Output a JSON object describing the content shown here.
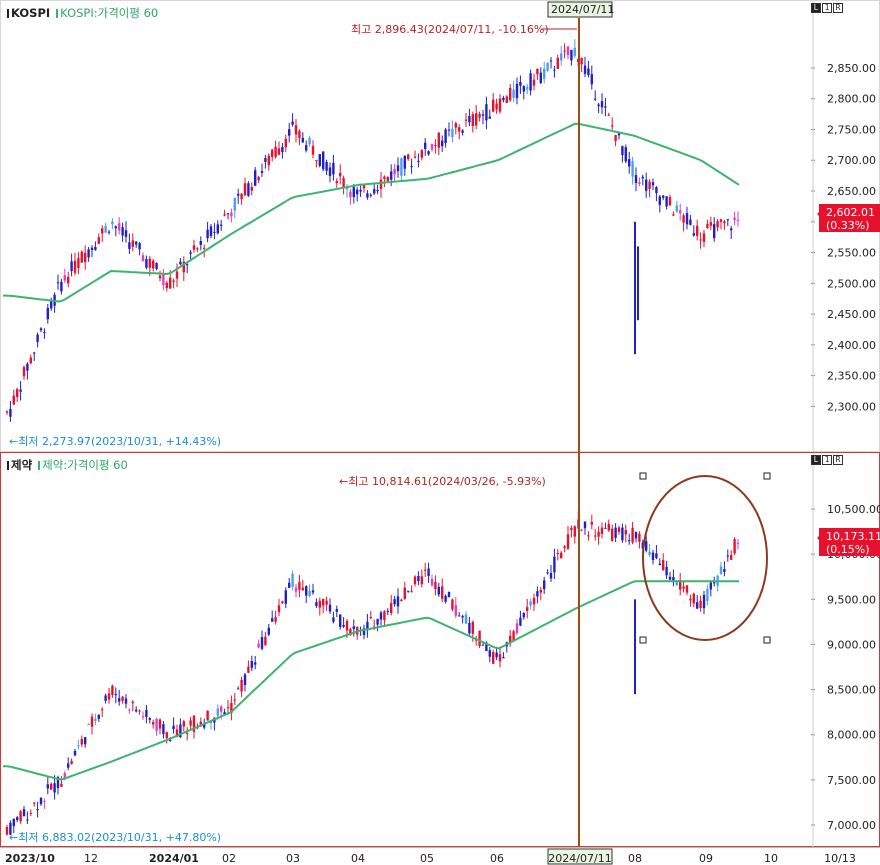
{
  "pane1": {
    "symbol": "KOSPI",
    "ma_label": "KOSPI:가격이평 60",
    "high_annotation": "최고 2,896.43(2024/07/11, -10.16%)",
    "low_annotation": "←최저 2,273.97(2023/10/31, +14.43%)",
    "price_tag": "2,602.01",
    "change_tag": "(0.33%)",
    "y_labels": [
      "2,850.00",
      "2,800.00",
      "2,750.00",
      "2,700.00",
      "2,650.00",
      "2,600.00",
      "2,550.00",
      "2,500.00",
      "2,450.00",
      "2,400.00",
      "2,350.00",
      "2,300.00"
    ],
    "y_values": [
      2850,
      2800,
      2750,
      2700,
      2650,
      2600,
      2550,
      2500,
      2450,
      2400,
      2350,
      2300
    ],
    "ctrl": [
      "L",
      "1",
      "R"
    ]
  },
  "pane2": {
    "symbol": "제약",
    "ma_label": "제약:가격이평 60",
    "high_annotation": "←최고 10,814.61(2024/03/26, -5.93%)",
    "low_annotation": "←최저 6,883.02(2023/10/31, +47.80%)",
    "price_tag": "10,173.11",
    "change_tag": "(0.15%)",
    "y_labels": [
      "10,500.00",
      "10,000.00",
      "9,500.00",
      "9,000.00",
      "8,500.00",
      "8,000.00",
      "7,500.00",
      "7,000.00"
    ],
    "y_values": [
      10500,
      10000,
      9500,
      9000,
      8500,
      8000,
      7500,
      7000
    ],
    "ctrl": [
      "L",
      "1",
      "R"
    ]
  },
  "crosshair": {
    "date_label": "2024/07/11"
  },
  "x_axis": {
    "labels": [
      "2023/10",
      "12",
      "2024/01",
      "02",
      "03",
      "04",
      "05",
      "06",
      "2024/07/11",
      "08",
      "09",
      "10",
      "10/13"
    ]
  },
  "colors": {
    "up": "#e8112d",
    "down": "#2020c8",
    "ma": "#3db46d",
    "crosshair": "#a34a0f",
    "circle": "#8b3a1f",
    "pink": "#e040c0",
    "lightblue": "#4aa0f0"
  },
  "chart_data": [
    {
      "type": "line",
      "title": "KOSPI",
      "series": [
        {
          "name": "KOSPI",
          "x": [
            "2023/10",
            "2023/11",
            "2023/12",
            "2024/01",
            "2024/02",
            "2024/03",
            "2024/04",
            "2024/05",
            "2024/06",
            "2024/07",
            "2024/08",
            "2024/09",
            "2024/10"
          ],
          "values": [
            2290,
            2500,
            2600,
            2500,
            2620,
            2750,
            2640,
            2720,
            2790,
            2880,
            2680,
            2580,
            2602
          ]
        },
        {
          "name": "KOSPI:가격이평 60",
          "x": [
            "2023/10",
            "2023/11",
            "2023/12",
            "2024/01",
            "2024/02",
            "2024/03",
            "2024/04",
            "2024/05",
            "2024/06",
            "2024/07",
            "2024/08",
            "2024/09",
            "2024/10"
          ],
          "values": [
            2480,
            2470,
            2520,
            2515,
            2580,
            2640,
            2660,
            2670,
            2700,
            2760,
            2740,
            2700,
            2660
          ]
        }
      ],
      "high": {
        "value": 2896.43,
        "date": "2024/07/11"
      },
      "low": {
        "value": 2273.97,
        "date": "2023/10/31"
      },
      "ylim": [
        2260,
        2910
      ]
    },
    {
      "type": "line",
      "title": "제약",
      "series": [
        {
          "name": "제약",
          "x": [
            "2023/10",
            "2023/11",
            "2023/12",
            "2024/01",
            "2024/02",
            "2024/03",
            "2024/04",
            "2024/05",
            "2024/06",
            "2024/07",
            "2024/08",
            "2024/09",
            "2024/10"
          ],
          "values": [
            6950,
            7500,
            8500,
            8000,
            8300,
            9700,
            9100,
            9800,
            8800,
            10300,
            10200,
            9400,
            10173
          ]
        },
        {
          "name": "제약:가격이평 60",
          "x": [
            "2023/10",
            "2023/11",
            "2023/12",
            "2024/01",
            "2024/02",
            "2024/03",
            "2024/04",
            "2024/05",
            "2024/06",
            "2024/07",
            "2024/08",
            "2024/09",
            "2024/10"
          ],
          "values": [
            7650,
            7500,
            7700,
            7950,
            8250,
            8900,
            9150,
            9300,
            8950,
            9400,
            9700,
            9700,
            9700
          ]
        }
      ],
      "high": {
        "value": 10814.61,
        "date": "2024/03/26"
      },
      "low": {
        "value": 6883.02,
        "date": "2023/10/31"
      },
      "ylim": [
        6800,
        10900
      ]
    }
  ]
}
